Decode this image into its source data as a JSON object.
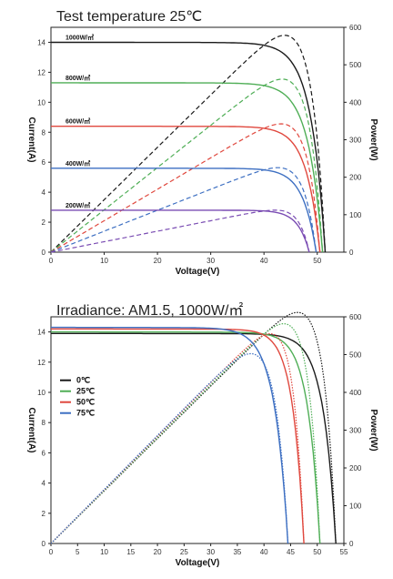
{
  "chart_data": [
    {
      "type": "line",
      "title": "Test temperature 25℃",
      "xlabel": "Voltage(V)",
      "ylabel": "Current(A)",
      "y2label": "Power(W)",
      "xlim": [
        0,
        55
      ],
      "ylim": [
        0,
        15
      ],
      "y2lim": [
        0,
        600
      ],
      "xticks": [
        "0",
        "10",
        "20",
        "30",
        "40",
        "50"
      ],
      "yticks": [
        "0",
        "2",
        "4",
        "6",
        "8",
        "10",
        "12",
        "14"
      ],
      "y2ticks": [
        "0",
        "100",
        "200",
        "300",
        "400",
        "500",
        "600"
      ],
      "legend": "none",
      "series": [
        {
          "name": "1000W/㎡",
          "color": "#1a1a1a",
          "isc": 14.0,
          "voc": 51.5,
          "vmp": 42.0,
          "pmax": 575
        },
        {
          "name": "800W/㎡",
          "color": "#4fae56",
          "isc": 11.3,
          "voc": 51.0,
          "vmp": 41.5,
          "pmax": 455
        },
        {
          "name": "600W/㎡",
          "color": "#e0483e",
          "isc": 8.4,
          "voc": 50.5,
          "vmp": 41.5,
          "pmax": 335
        },
        {
          "name": "400W/㎡",
          "color": "#3d6fc2",
          "isc": 5.6,
          "voc": 49.8,
          "vmp": 41.0,
          "pmax": 225
        },
        {
          "name": "200W/㎡",
          "color": "#7a4cb3",
          "isc": 2.8,
          "voc": 48.5,
          "vmp": 41.0,
          "pmax": 110
        }
      ]
    },
    {
      "type": "line",
      "title": "Irradiance: AM1.5, 1000W/㎡",
      "xlabel": "Voltage(V)",
      "ylabel": "Current(A)",
      "y2label": "Power(W)",
      "xlim": [
        0,
        55
      ],
      "ylim": [
        0,
        15
      ],
      "y2lim": [
        0,
        600
      ],
      "xticks": [
        "0",
        "5",
        "10",
        "15",
        "20",
        "25",
        "30",
        "35",
        "40",
        "45",
        "50",
        "55"
      ],
      "yticks": [
        "0",
        "2",
        "4",
        "6",
        "8",
        "10",
        "12",
        "14"
      ],
      "y2ticks": [
        "0",
        "100",
        "200",
        "300",
        "400",
        "500",
        "600"
      ],
      "legend": "left",
      "series": [
        {
          "name": "0℃",
          "color": "#1a1a1a",
          "isc": 13.9,
          "voc": 53.5,
          "vmp": 45.0,
          "pmax": 600
        },
        {
          "name": "25℃",
          "color": "#4fae56",
          "isc": 14.0,
          "voc": 50.5,
          "vmp": 42.5,
          "pmax": 565
        },
        {
          "name": "50℃",
          "color": "#e0483e",
          "isc": 14.2,
          "voc": 47.5,
          "vmp": 40.0,
          "pmax": 535
        },
        {
          "name": "75℃",
          "color": "#3d6fc2",
          "isc": 14.3,
          "voc": 44.5,
          "vmp": 35.5,
          "pmax": 480
        }
      ]
    }
  ]
}
